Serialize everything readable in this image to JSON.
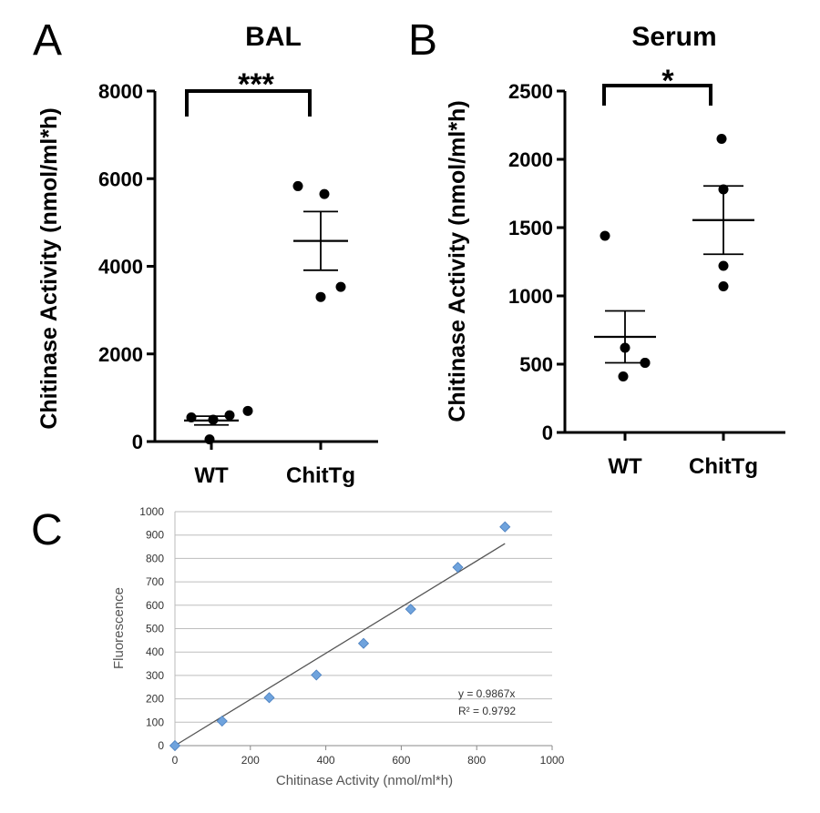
{
  "chart_data": [
    {
      "panel": "A",
      "type": "scatter",
      "title": "BAL",
      "ylabel": "Chitinase Activity (nmol/ml*h)",
      "xlabel": "",
      "ylim": [
        0,
        8000
      ],
      "yticks": [
        0,
        2000,
        4000,
        6000,
        8000
      ],
      "categories": [
        "WT",
        "ChitTg"
      ],
      "series": [
        {
          "name": "WT",
          "values": [
            550,
            50,
            500,
            600,
            700
          ],
          "mean": 480,
          "sem_low": 380,
          "sem_high": 580
        },
        {
          "name": "ChitTg",
          "values": [
            5830,
            5650,
            3300,
            3530
          ],
          "mean": 4580,
          "sem_low": 3910,
          "sem_high": 5250
        }
      ],
      "significance": "***"
    },
    {
      "panel": "B",
      "type": "scatter",
      "title": "Serum",
      "ylabel": "Chitinase Activity (nmol/ml*h)",
      "xlabel": "",
      "ylim": [
        0,
        2500
      ],
      "yticks": [
        0,
        500,
        1000,
        1500,
        2000,
        2500
      ],
      "categories": [
        "WT",
        "ChitTg"
      ],
      "series": [
        {
          "name": "WT",
          "values": [
            1440,
            620,
            410,
            510,
            510
          ],
          "mean": 700,
          "sem_low": 510,
          "sem_high": 890
        },
        {
          "name": "ChitTg",
          "values": [
            2150,
            1780,
            1220,
            1070
          ],
          "mean": 1555,
          "sem_low": 1305,
          "sem_high": 1805
        }
      ],
      "significance": "*"
    },
    {
      "panel": "C",
      "type": "scatter",
      "title": "",
      "xlabel": "Chitinase Activity (nmol/ml*h)",
      "ylabel": "Fluorescence",
      "xlim": [
        0,
        1000
      ],
      "ylim": [
        0,
        1000
      ],
      "xticks": [
        0,
        200,
        400,
        600,
        800,
        1000
      ],
      "yticks": [
        0,
        100,
        200,
        300,
        400,
        500,
        600,
        700,
        800,
        900,
        1000
      ],
      "x": [
        0,
        125,
        250,
        375,
        500,
        625,
        750,
        875
      ],
      "y": [
        0,
        105,
        205,
        302,
        437,
        583,
        762,
        935
      ],
      "trendline": {
        "slope": 0.9867,
        "x_end": 875,
        "equation": "y = 0.9867x",
        "r2": "R² = 0.9792"
      },
      "grid": true,
      "marker_color": "#6fa3dd"
    }
  ]
}
